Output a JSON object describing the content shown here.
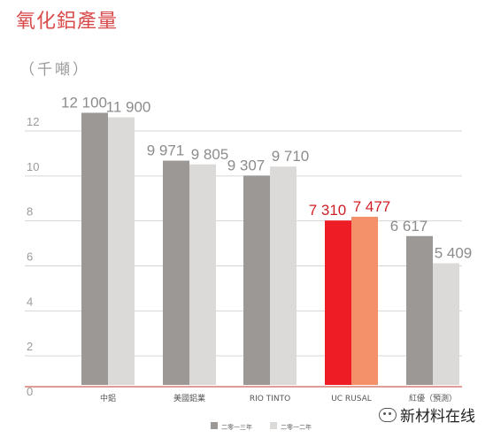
{
  "title": "氧化鋁產量",
  "unit": "（千噸）",
  "watermark": "新材料在线",
  "chart_data": {
    "type": "bar",
    "title": "氧化鋁產量",
    "ylabel": "（千噸）",
    "ylim": [
      0,
      13
    ],
    "yticks": [
      0,
      2,
      4,
      6,
      8,
      10,
      12
    ],
    "categories": [
      "中鋁",
      "美國鋁業",
      "RIO TINTO",
      "UC RUSAL",
      "紅優（預測）"
    ],
    "series": [
      {
        "name": "二零一三年",
        "values": [
          12100,
          9971,
          9307,
          7310,
          6617
        ],
        "labels": [
          "12 100",
          "9 971",
          "9 307",
          "7 310",
          "6 617"
        ]
      },
      {
        "name": "二零一二年",
        "values": [
          11900,
          9805,
          9710,
          7477,
          5409
        ],
        "labels": [
          "11 900",
          "9 805",
          "9 710",
          "7 477",
          "5 409"
        ]
      }
    ],
    "colors": {
      "series0": "#9b9895",
      "series1": "#dcdad8",
      "highlight0": "#ee1c25",
      "highlight1": "#f4916a",
      "label": "#8c8c8c",
      "highlight_label": "#d01f24",
      "grid": "#d6d6d6",
      "axis": "#c0392b"
    },
    "highlight_category": "UC RUSAL",
    "grid": true,
    "legend": "bottom"
  }
}
